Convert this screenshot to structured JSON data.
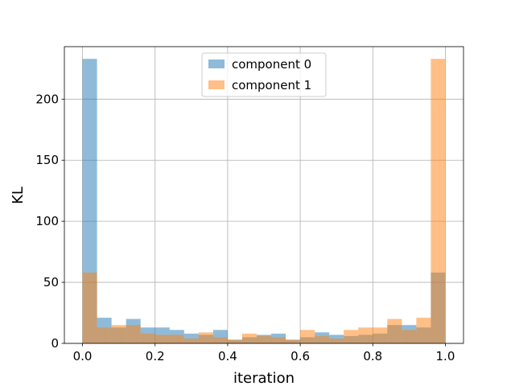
{
  "chart_data": {
    "type": "bar",
    "subtype": "overlapping-histogram",
    "title": "",
    "xlabel": "iteration",
    "ylabel": "KL",
    "xlim": [
      -0.05,
      1.05
    ],
    "ylim": [
      0,
      243
    ],
    "xticks": [
      "0.0",
      "0.2",
      "0.4",
      "0.6",
      "0.8",
      "1.0"
    ],
    "yticks": [
      "0",
      "50",
      "100",
      "150",
      "200"
    ],
    "grid": true,
    "legend": {
      "placement": "top-center"
    },
    "bin_edges": [
      0.0,
      0.04,
      0.08,
      0.12,
      0.16,
      0.2,
      0.24,
      0.28,
      0.32,
      0.36,
      0.4,
      0.44,
      0.48,
      0.52,
      0.56,
      0.6,
      0.64,
      0.68,
      0.72,
      0.76,
      0.8,
      0.84,
      0.88,
      0.92,
      0.96,
      1.0
    ],
    "series": [
      {
        "name": "component 0",
        "color": "#1f77b4",
        "alpha": 0.5,
        "values": [
          233,
          21,
          13,
          20,
          13,
          13,
          11,
          8,
          7,
          11,
          3,
          5,
          7,
          8,
          3,
          5,
          9,
          7,
          6,
          7,
          8,
          15,
          15,
          13,
          58
        ]
      },
      {
        "name": "component 1",
        "color": "#ff7f0e",
        "alpha": 0.5,
        "values": [
          58,
          13,
          15,
          15,
          8,
          7,
          7,
          4,
          9,
          5,
          3,
          8,
          6,
          5,
          3,
          11,
          6,
          4,
          11,
          13,
          13,
          20,
          11,
          21,
          233
        ]
      }
    ]
  }
}
